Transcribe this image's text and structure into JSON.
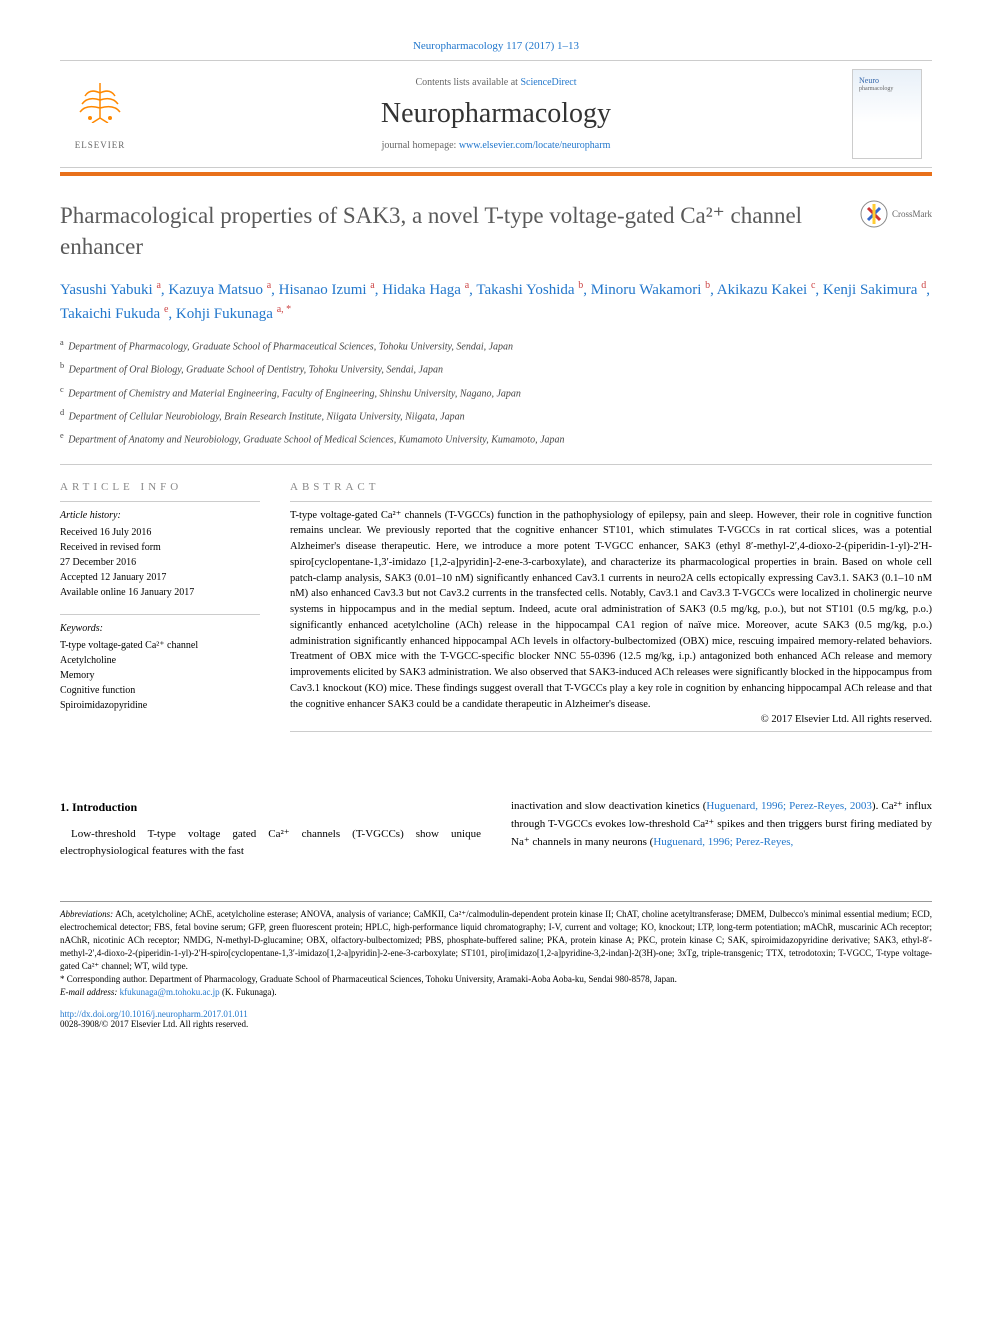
{
  "journal_ref": "Neuropharmacology 117 (2017) 1–13",
  "header": {
    "contents_prefix": "Contents lists available at ",
    "contents_link": "ScienceDirect",
    "journal_name": "Neuropharmacology",
    "homepage_prefix": "journal homepage: ",
    "homepage_link": "www.elsevier.com/locate/neuropharm",
    "publisher": "ELSEVIER"
  },
  "colors": {
    "accent_orange": "#e8701a",
    "link_blue": "#2277cc",
    "heading_gray": "#5a5a5a",
    "rule_gray": "#cccccc",
    "sup_red": "#cc4444"
  },
  "crossmark": "CrossMark",
  "title": "Pharmacological properties of SAK3, a novel T-type voltage-gated Ca²⁺ channel enhancer",
  "authors_html": "Yasushi Yabuki <sup>a</sup>, Kazuya Matsuo <sup>a</sup>, Hisanao Izumi <sup>a</sup>, Hidaka Haga <sup>a</sup>, Takashi Yoshida <sup>b</sup>, Minoru Wakamori <sup>b</sup>, Akikazu Kakei <sup>c</sup>, Kenji Sakimura <sup>d</sup>, Takaichi Fukuda <sup>e</sup>, Kohji Fukunaga <sup>a, *</sup>",
  "affiliations": [
    {
      "sup": "a",
      "text": "Department of Pharmacology, Graduate School of Pharmaceutical Sciences, Tohoku University, Sendai, Japan"
    },
    {
      "sup": "b",
      "text": "Department of Oral Biology, Graduate School of Dentistry, Tohoku University, Sendai, Japan"
    },
    {
      "sup": "c",
      "text": "Department of Chemistry and Material Engineering, Faculty of Engineering, Shinshu University, Nagano, Japan"
    },
    {
      "sup": "d",
      "text": "Department of Cellular Neurobiology, Brain Research Institute, Niigata University, Niigata, Japan"
    },
    {
      "sup": "e",
      "text": "Department of Anatomy and Neurobiology, Graduate School of Medical Sciences, Kumamoto University, Kumamoto, Japan"
    }
  ],
  "article_info": {
    "heading": "ARTICLE INFO",
    "history_label": "Article history:",
    "history": [
      "Received 16 July 2016",
      "Received in revised form",
      "27 December 2016",
      "Accepted 12 January 2017",
      "Available online 16 January 2017"
    ],
    "keywords_label": "Keywords:",
    "keywords": [
      "T-type voltage-gated Ca²⁺ channel",
      "Acetylcholine",
      "Memory",
      "Cognitive function",
      "Spiroimidazopyridine"
    ]
  },
  "abstract": {
    "heading": "ABSTRACT",
    "text": "T-type voltage-gated Ca²⁺ channels (T-VGCCs) function in the pathophysiology of epilepsy, pain and sleep. However, their role in cognitive function remains unclear. We previously reported that the cognitive enhancer ST101, which stimulates T-VGCCs in rat cortical slices, was a potential Alzheimer's disease therapeutic. Here, we introduce a more potent T-VGCC enhancer, SAK3 (ethyl 8′-methyl-2′,4-dioxo-2-(piperidin-1-yl)-2′H-spiro[cyclopentane-1,3′-imidazo [1,2-a]pyridin]-2-ene-3-carboxylate), and characterize its pharmacological properties in brain. Based on whole cell patch-clamp analysis, SAK3 (0.01–10 nM) significantly enhanced Cav3.1 currents in neuro2A cells ectopically expressing Cav3.1. SAK3 (0.1–10 nM nM) also enhanced Cav3.3 but not Cav3.2 currents in the transfected cells. Notably, Cav3.1 and Cav3.3 T-VGCCs were localized in cholinergic neurve systems in hippocampus and in the medial septum. Indeed, acute oral administration of SAK3 (0.5 mg/kg, p.o.), but not ST101 (0.5 mg/kg, p.o.) significantly enhanced acetylcholine (ACh) release in the hippocampal CA1 region of naïve mice. Moreover, acute SAK3 (0.5 mg/kg, p.o.) administration significantly enhanced hippocampal ACh levels in olfactory-bulbectomized (OBX) mice, rescuing impaired memory-related behaviors. Treatment of OBX mice with the T-VGCC-specific blocker NNC 55-0396 (12.5 mg/kg, i.p.) antagonized both enhanced ACh release and memory improvements elicited by SAK3 administration. We also observed that SAK3-induced ACh releases were significantly blocked in the hippocampus from Cav3.1 knockout (KO) mice. These findings suggest overall that T-VGCCs play a key role in cognition by enhancing hippocampal ACh release and that the cognitive enhancer SAK3 could be a candidate therapeutic in Alzheimer's disease.",
    "copyright": "© 2017 Elsevier Ltd. All rights reserved."
  },
  "intro": {
    "heading": "1. Introduction",
    "col1": "Low-threshold T-type voltage gated Ca²⁺ channels (T-VGCCs) show unique electrophysiological features with the fast",
    "col2_pre": "inactivation and slow deactivation kinetics (",
    "col2_link1": "Huguenard, 1996; Perez-Reyes, 2003",
    "col2_mid": "). Ca²⁺ influx through T-VGCCs evokes low-threshold Ca²⁺ spikes and then triggers burst firing mediated by Na⁺ channels in many neurons (",
    "col2_link2": "Huguenard, 1996; Perez-Reyes,"
  },
  "footnotes": {
    "abbrev_label": "Abbreviations:",
    "abbrev_text": " ACh, acetylcholine; AChE, acetylcholine esterase; ANOVA, analysis of variance; CaMKII, Ca²⁺/calmodulin-dependent protein kinase II; ChAT, choline acetyltransferase; DMEM, Dulbecco's minimal essential medium; ECD, electrochemical detector; FBS, fetal bovine serum; GFP, green fluorescent protein; HPLC, high-performance liquid chromatography; I-V, current and voltage; KO, knockout; LTP, long-term potentiation; mAChR, muscarinic ACh receptor; nAChR, nicotinic ACh receptor; NMDG, N-methyl-D-glucamine; OBX, olfactory-bulbectomized; PBS, phosphate-buffered saline; PKA, protein kinase A; PKC, protein kinase C; SAK, spiroimidazopyridine derivative; SAK3, ethyl-8′-methyl-2′,4-dioxo-2-(piperidin-1-yl)-2′H-spiro[cyclopentane-1,3′-imidazo[1,2-a]pyridin]-2-ene-3-carboxylate; ST101, piro[imidazo[1,2-a]pyridine-3,2-indan]-2(3H)-one; 3xTg, triple-transgenic; TTX, tetrodotoxin; T-VGCC, T-type voltage-gated Ca²⁺ channel; WT, wild type.",
    "corresp_label": "* Corresponding author.",
    "corresp_text": " Department of Pharmacology, Graduate School of Pharmaceutical Sciences, Tohoku University, Aramaki-Aoba Aoba-ku, Sendai 980-8578, Japan.",
    "email_label": "E-mail address:",
    "email": " kfukunaga@m.tohoku.ac.jp",
    "email_suffix": " (K. Fukunaga)."
  },
  "doi": "http://dx.doi.org/10.1016/j.neuropharm.2017.01.011",
  "issn_line": "0028-3908/© 2017 Elsevier Ltd. All rights reserved."
}
